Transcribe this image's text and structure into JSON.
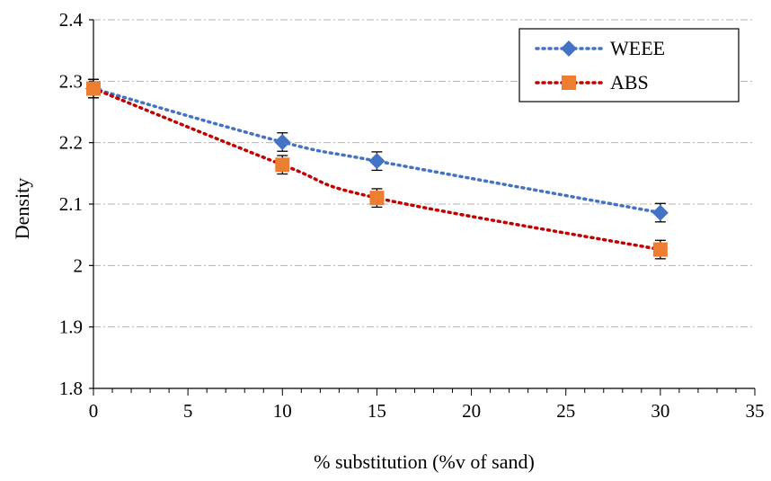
{
  "chart_data": {
    "type": "line",
    "xlabel": "% substitution (%v of sand)",
    "ylabel": "Density",
    "xlim": [
      0,
      35
    ],
    "ylim": [
      1.8,
      2.4
    ],
    "x_ticks": [
      0,
      5,
      10,
      15,
      20,
      25,
      30,
      35
    ],
    "y_ticks": [
      1.8,
      1.9,
      2.0,
      2.1,
      2.2,
      2.3,
      2.4
    ],
    "x_tick_labels": [
      "0",
      "5",
      "10",
      "15",
      "20",
      "25",
      "30",
      "35"
    ],
    "y_tick_labels": [
      "1.8",
      "1.9",
      "2",
      "2.1",
      "2.2",
      "2.3",
      "2.4"
    ],
    "grid": "horizontal dash-dot",
    "legend_position": "top-right",
    "series": [
      {
        "name": "WEEE",
        "color": "#4472C4",
        "marker": "diamond",
        "line_style": "dotted",
        "x": [
          0,
          10,
          15,
          30
        ],
        "y": [
          2.288,
          2.201,
          2.17,
          2.086
        ],
        "error": [
          0.015,
          0.015,
          0.015,
          0.015
        ]
      },
      {
        "name": "ABS",
        "color": "#ED7D31",
        "line_color": "#C00000",
        "marker": "square",
        "line_style": "dotted",
        "x": [
          0,
          10,
          15,
          30
        ],
        "y": [
          2.288,
          2.164,
          2.11,
          2.026
        ],
        "error": [
          0.015,
          0.015,
          0.015,
          0.015
        ]
      }
    ]
  }
}
